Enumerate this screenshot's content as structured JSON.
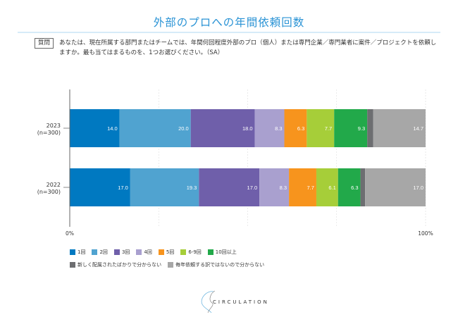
{
  "header": {
    "title": "外部のプロへの年間依頼回数"
  },
  "question": {
    "badge": "質問",
    "text": "あなたは、現在所属する部門またはチームでは、年間何回程度外部のプロ（個人）または専門企業／専門業者に案件／プロジェクトを依頼しますか。最も当てはまるものを、1つお選びください。（SA）"
  },
  "chart_data": {
    "type": "bar",
    "orientation": "horizontal-stacked-100",
    "categories": [
      "2023\n(n=300)",
      "2022\n(n=300)"
    ],
    "category_labels": [
      [
        "2023",
        "(n=300)"
      ],
      [
        "2022",
        "(n=300)"
      ]
    ],
    "series": [
      {
        "name": "1回",
        "color": "#0079c1",
        "values": [
          14.0,
          17.0
        ]
      },
      {
        "name": "2回",
        "color": "#50a3d0",
        "values": [
          20.0,
          19.3
        ]
      },
      {
        "name": "3回",
        "color": "#6f5faa",
        "values": [
          18.0,
          17.0
        ]
      },
      {
        "name": "4回",
        "color": "#a9a0cf",
        "values": [
          8.3,
          8.3
        ]
      },
      {
        "name": "5回",
        "color": "#f7941d",
        "values": [
          6.3,
          7.7
        ]
      },
      {
        "name": "6-9回",
        "color": "#a6ce39",
        "values": [
          7.7,
          6.1
        ]
      },
      {
        "name": "10回以上",
        "color": "#22a94a",
        "values": [
          9.3,
          6.3
        ]
      },
      {
        "name": "新しく配属されたばかりで分からない",
        "color": "#6d6e71",
        "values": [
          1.7,
          1.3
        ]
      },
      {
        "name": "毎年依頼する訳ではないので分からない",
        "color": "#a7a7a7",
        "values": [
          14.7,
          17.0
        ]
      }
    ],
    "xlim": [
      0,
      100
    ],
    "xticks": [
      "0%",
      "100%"
    ],
    "grid": true,
    "legend": "bottom"
  },
  "footer": {
    "logo": "CIRCULATION"
  }
}
